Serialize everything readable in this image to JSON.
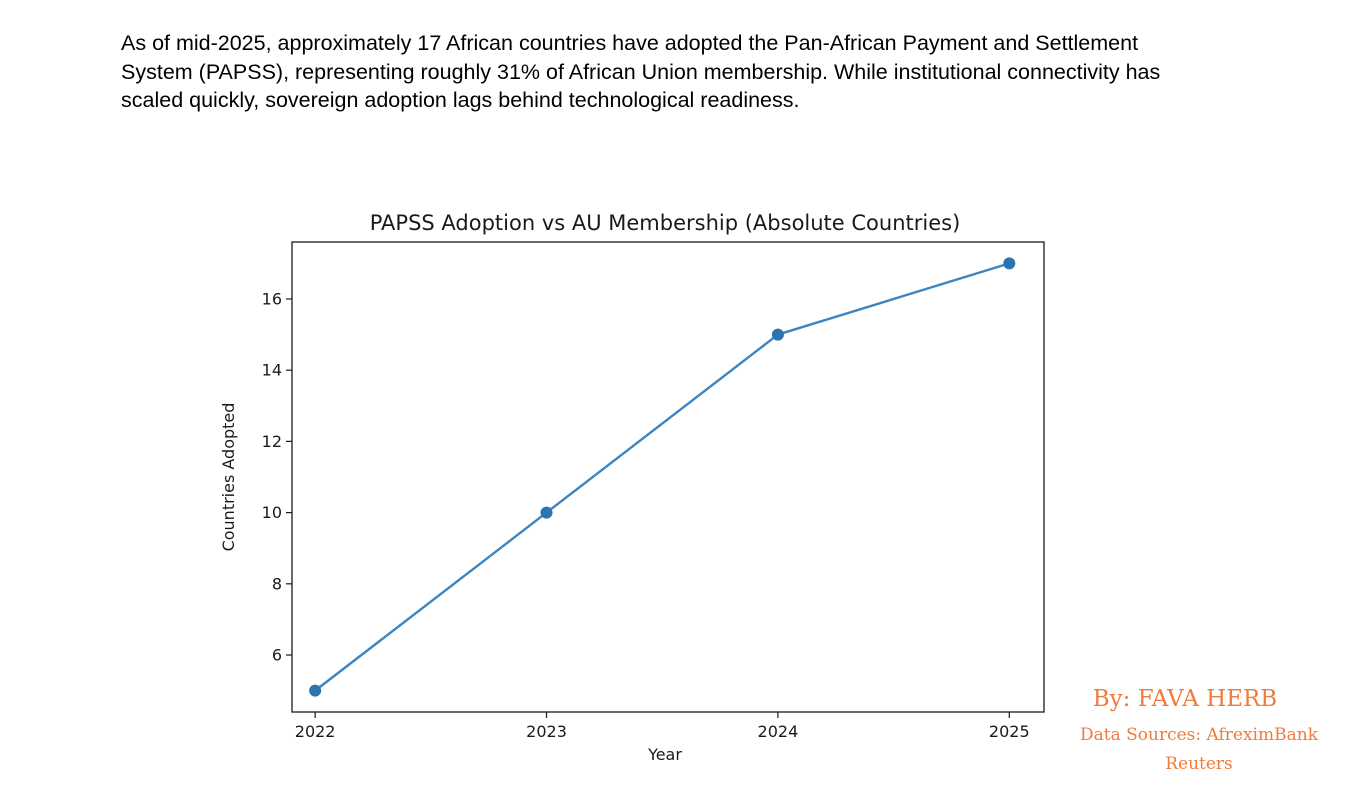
{
  "intro_text": "As of mid-2025, approximately 17 African countries have adopted the Pan-African Payment and Settlement System (PAPSS), representing roughly 31% of African Union membership. While institutional connectivity has scaled quickly, sovereign adoption lags behind technological readiness.",
  "credits": {
    "author": "By: FAVA HERB",
    "sources_line1": "Data Sources: AfreximBank",
    "sources_line2": "Reuters"
  },
  "colors": {
    "series": "#3b86c2",
    "marker": "#2a74b0",
    "credit": "#f07b3a"
  },
  "chart_data": {
    "type": "line",
    "title": "PAPSS Adoption vs AU Membership (Absolute Countries)",
    "xlabel": "Year",
    "ylabel": "Countries Adopted",
    "x": [
      2022,
      2023,
      2024,
      2025
    ],
    "series": [
      {
        "values": [
          5,
          10,
          15,
          17
        ]
      }
    ],
    "xlim": [
      2021.9,
      2025.15
    ],
    "ylim": [
      4.4,
      17.6
    ],
    "xticks": [
      "2022",
      "2023",
      "2024",
      "2025"
    ],
    "yticks": [
      6,
      8,
      10,
      12,
      14,
      16
    ],
    "grid": false,
    "legend": "none"
  }
}
